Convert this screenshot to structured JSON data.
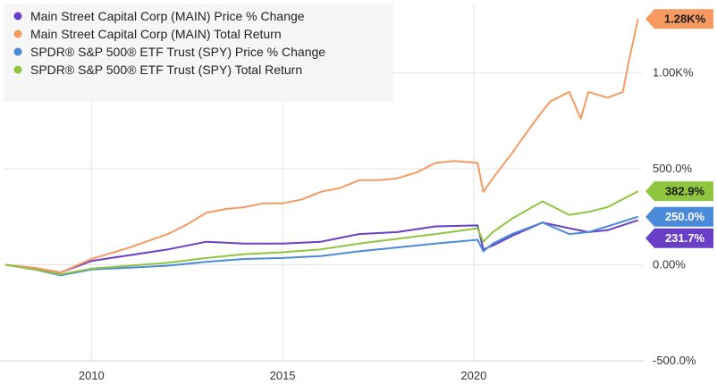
{
  "chart_data": {
    "type": "line",
    "x_range": [
      2007.7,
      2024.4
    ],
    "ylim": [
      -500,
      1360
    ],
    "x_ticks": [
      {
        "value": 2010,
        "label": "2010"
      },
      {
        "value": 2015,
        "label": "2015"
      },
      {
        "value": 2020,
        "label": "2020"
      }
    ],
    "y_ticks": [
      {
        "value": 1000,
        "label": "1.00K%"
      },
      {
        "value": 500,
        "label": "500.0%"
      },
      {
        "value": 0,
        "label": "0.00%"
      },
      {
        "value": -500,
        "label": "-500.0%"
      }
    ],
    "grid": true,
    "legend_position": "top-left",
    "series": [
      {
        "name": "Main Street Capital Corp (MAIN) Price % Change",
        "color": "#6a3fc8",
        "end_label": "231.7%",
        "x": [
          2007.75,
          2008.5,
          2009.2,
          2010,
          2011,
          2012,
          2013,
          2014,
          2015,
          2016,
          2017,
          2018,
          2019,
          2020.1,
          2020.25,
          2020.5,
          2021,
          2021.8,
          2022.5,
          2023,
          2023.5,
          2024.3
        ],
        "y": [
          0,
          -20,
          -40,
          20,
          50,
          80,
          120,
          110,
          110,
          120,
          160,
          170,
          200,
          205,
          80,
          100,
          150,
          220,
          190,
          170,
          180,
          232
        ]
      },
      {
        "name": "Main Street Capital Corp (MAIN) Total Return",
        "color": "#f79a61",
        "end_label": "1.28K%",
        "x": [
          2007.75,
          2008.5,
          2009.2,
          2010,
          2011,
          2012,
          2012.5,
          2013,
          2013.5,
          2014,
          2014.5,
          2015,
          2015.5,
          2016,
          2016.5,
          2017,
          2017.5,
          2018,
          2018.5,
          2019,
          2019.5,
          2020.1,
          2020.25,
          2020.5,
          2021,
          2021.5,
          2021.8,
          2022,
          2022.5,
          2022.8,
          2023,
          2023.5,
          2023.9,
          2024.1,
          2024.3
        ],
        "y": [
          0,
          -15,
          -40,
          30,
          90,
          160,
          210,
          270,
          290,
          300,
          320,
          320,
          340,
          380,
          400,
          440,
          440,
          450,
          480,
          530,
          540,
          530,
          380,
          450,
          580,
          720,
          800,
          850,
          900,
          760,
          900,
          870,
          900,
          1100,
          1280
        ]
      },
      {
        "name": "SPDR® S&P 500® ETF Trust (SPY) Price % Change",
        "color": "#4a8ad8",
        "end_label": "250.0%",
        "x": [
          2007.75,
          2008.5,
          2009.2,
          2010,
          2011,
          2012,
          2013,
          2014,
          2015,
          2016,
          2017,
          2018,
          2019,
          2020.1,
          2020.25,
          2020.5,
          2021,
          2021.8,
          2022.5,
          2023,
          2023.5,
          2024.3
        ],
        "y": [
          0,
          -25,
          -55,
          -25,
          -15,
          -5,
          15,
          30,
          35,
          45,
          70,
          90,
          110,
          130,
          70,
          110,
          160,
          220,
          160,
          170,
          200,
          250
        ]
      },
      {
        "name": "SPDR® S&P 500® ETF Trust (SPY) Total Return",
        "color": "#8fc63f",
        "end_label": "382.9%",
        "x": [
          2007.75,
          2008.5,
          2009.2,
          2010,
          2011,
          2012,
          2013,
          2014,
          2015,
          2016,
          2017,
          2018,
          2019,
          2020.1,
          2020.25,
          2020.5,
          2021,
          2021.8,
          2022.5,
          2023,
          2023.5,
          2024.3
        ],
        "y": [
          0,
          -25,
          -50,
          -20,
          -5,
          10,
          35,
          55,
          65,
          80,
          110,
          135,
          160,
          190,
          120,
          170,
          240,
          330,
          260,
          275,
          300,
          383
        ]
      }
    ]
  }
}
